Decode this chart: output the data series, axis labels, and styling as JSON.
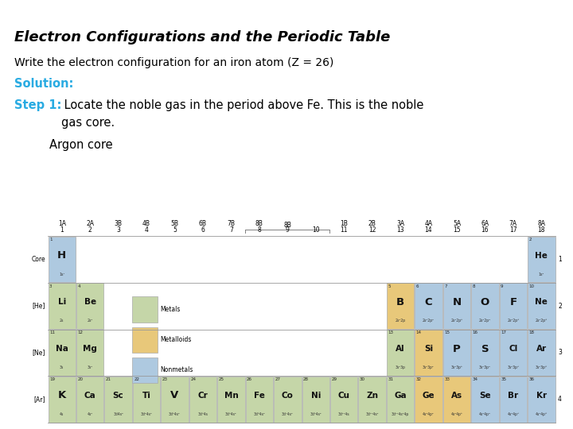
{
  "title": "Electron Configurations and the Periodic Table",
  "subtitle": "Write the electron configuration for an iron atom (Z = 26)",
  "solution_label": "Solution:",
  "step1_label": "Step 1:",
  "step1_text": " Locate the noble gas in the period above Fe. This is the noble",
  "step1_text2": "     gas core.",
  "argon_text": "Argon core",
  "bg_color": "#ffffff",
  "title_color": "#000000",
  "subtitle_color": "#000000",
  "solution_color": "#29abe2",
  "step1_color": "#29abe2",
  "body_color": "#000000",
  "elements": [
    {
      "sym": "H",
      "num": 1,
      "conf": "1s¹",
      "row": 1,
      "col": 1,
      "color": "#aec9e0"
    },
    {
      "sym": "He",
      "num": 2,
      "conf": "1s²",
      "row": 1,
      "col": 18,
      "color": "#aec9e0"
    },
    {
      "sym": "Li",
      "num": 3,
      "conf": "2s",
      "row": 2,
      "col": 1,
      "color": "#c5d6a8"
    },
    {
      "sym": "Be",
      "num": 4,
      "conf": "2s²",
      "row": 2,
      "col": 2,
      "color": "#c5d6a8"
    },
    {
      "sym": "B",
      "num": 5,
      "conf": "2s²2p",
      "row": 2,
      "col": 13,
      "color": "#e8c87a"
    },
    {
      "sym": "C",
      "num": 6,
      "conf": "2s²2p²",
      "row": 2,
      "col": 14,
      "color": "#aec9e0"
    },
    {
      "sym": "N",
      "num": 7,
      "conf": "2s²2p³",
      "row": 2,
      "col": 15,
      "color": "#aec9e0"
    },
    {
      "sym": "O",
      "num": 8,
      "conf": "2s²2p⁴",
      "row": 2,
      "col": 16,
      "color": "#aec9e0"
    },
    {
      "sym": "F",
      "num": 9,
      "conf": "2s²2p⁵",
      "row": 2,
      "col": 17,
      "color": "#aec9e0"
    },
    {
      "sym": "Ne",
      "num": 10,
      "conf": "2s²2p⁶",
      "row": 2,
      "col": 18,
      "color": "#aec9e0"
    },
    {
      "sym": "Na",
      "num": 11,
      "conf": "3s",
      "row": 3,
      "col": 1,
      "color": "#c5d6a8"
    },
    {
      "sym": "Mg",
      "num": 12,
      "conf": "3s²",
      "row": 3,
      "col": 2,
      "color": "#c5d6a8"
    },
    {
      "sym": "Al",
      "num": 13,
      "conf": "3s²3p",
      "row": 3,
      "col": 13,
      "color": "#c5d6a8"
    },
    {
      "sym": "Si",
      "num": 14,
      "conf": "3s²3p²",
      "row": 3,
      "col": 14,
      "color": "#e8c87a"
    },
    {
      "sym": "P",
      "num": 15,
      "conf": "3s²3p³",
      "row": 3,
      "col": 15,
      "color": "#aec9e0"
    },
    {
      "sym": "S",
      "num": 16,
      "conf": "3s²3p⁴",
      "row": 3,
      "col": 16,
      "color": "#aec9e0"
    },
    {
      "sym": "Cl",
      "num": 17,
      "conf": "3s²3p⁵",
      "row": 3,
      "col": 17,
      "color": "#aec9e0"
    },
    {
      "sym": "Ar",
      "num": 18,
      "conf": "3s²3p⁶",
      "row": 3,
      "col": 18,
      "color": "#aec9e0"
    },
    {
      "sym": "K",
      "num": 19,
      "conf": "4s",
      "row": 4,
      "col": 1,
      "color": "#c5d6a8"
    },
    {
      "sym": "Ca",
      "num": 20,
      "conf": "4s²",
      "row": 4,
      "col": 2,
      "color": "#c5d6a8"
    },
    {
      "sym": "Sc",
      "num": 21,
      "conf": "3d4s²",
      "row": 4,
      "col": 3,
      "color": "#c5d6a8"
    },
    {
      "sym": "Ti",
      "num": 22,
      "conf": "3d²4s²",
      "row": 4,
      "col": 4,
      "color": "#c5d6a8"
    },
    {
      "sym": "V",
      "num": 23,
      "conf": "3d³4s²",
      "row": 4,
      "col": 5,
      "color": "#c5d6a8"
    },
    {
      "sym": "Cr",
      "num": 24,
      "conf": "3d⁵4s",
      "row": 4,
      "col": 6,
      "color": "#c5d6a8"
    },
    {
      "sym": "Mn",
      "num": 25,
      "conf": "3d⁵4s²",
      "row": 4,
      "col": 7,
      "color": "#c5d6a8"
    },
    {
      "sym": "Fe",
      "num": 26,
      "conf": "3d⁶4s²",
      "row": 4,
      "col": 8,
      "color": "#c5d6a8"
    },
    {
      "sym": "Co",
      "num": 27,
      "conf": "3d⁷4s²",
      "row": 4,
      "col": 9,
      "color": "#c5d6a8"
    },
    {
      "sym": "Ni",
      "num": 28,
      "conf": "3d⁸4s²",
      "row": 4,
      "col": 10,
      "color": "#c5d6a8"
    },
    {
      "sym": "Cu",
      "num": 29,
      "conf": "3d¹⁰4s",
      "row": 4,
      "col": 11,
      "color": "#c5d6a8"
    },
    {
      "sym": "Zn",
      "num": 30,
      "conf": "3d¹⁰4s²",
      "row": 4,
      "col": 12,
      "color": "#c5d6a8"
    },
    {
      "sym": "Ga",
      "num": 31,
      "conf": "3d¹⁰4s²4p",
      "row": 4,
      "col": 13,
      "color": "#c5d6a8"
    },
    {
      "sym": "Ge",
      "num": 32,
      "conf": "4s²4p²",
      "row": 4,
      "col": 14,
      "color": "#e8c87a"
    },
    {
      "sym": "As",
      "num": 33,
      "conf": "4s²4p³",
      "row": 4,
      "col": 15,
      "color": "#e8c87a"
    },
    {
      "sym": "Se",
      "num": 34,
      "conf": "4s²4p⁴",
      "row": 4,
      "col": 16,
      "color": "#aec9e0"
    },
    {
      "sym": "Br",
      "num": 35,
      "conf": "4s²4p⁵",
      "row": 4,
      "col": 17,
      "color": "#aec9e0"
    },
    {
      "sym": "Kr",
      "num": 36,
      "conf": "4s²4p⁶",
      "row": 4,
      "col": 18,
      "color": "#aec9e0"
    }
  ],
  "group_labels": [
    {
      "label": "1A",
      "num": "1",
      "col": 1
    },
    {
      "label": "2A",
      "num": "2",
      "col": 2
    },
    {
      "label": "3B",
      "num": "3",
      "col": 3
    },
    {
      "label": "4B",
      "num": "4",
      "col": 4
    },
    {
      "label": "5B",
      "num": "5",
      "col": 5
    },
    {
      "label": "6B",
      "num": "6",
      "col": 6
    },
    {
      "label": "7B",
      "num": "7",
      "col": 7
    },
    {
      "label": "8B",
      "num": "8",
      "col": 8
    },
    {
      "label": "",
      "num": "9",
      "col": 9
    },
    {
      "label": "",
      "num": "10",
      "col": 10
    },
    {
      "label": "1B",
      "num": "11",
      "col": 11
    },
    {
      "label": "2B",
      "num": "12",
      "col": 12
    },
    {
      "label": "3A",
      "num": "13",
      "col": 13
    },
    {
      "label": "4A",
      "num": "14",
      "col": 14
    },
    {
      "label": "5A",
      "num": "15",
      "col": 15
    },
    {
      "label": "6A",
      "num": "16",
      "col": 16
    },
    {
      "label": "7A",
      "num": "17",
      "col": 17
    },
    {
      "label": "8A",
      "num": "18",
      "col": 18
    }
  ],
  "row_labels": [
    "Core",
    "[He]",
    "[Ne]",
    "[Ar]"
  ],
  "period_nums": [
    "1",
    "2",
    "3",
    "4"
  ],
  "legend_items": [
    {
      "label": "Metals",
      "color": "#c5d6a8"
    },
    {
      "label": "Metalloids",
      "color": "#e8c87a"
    },
    {
      "label": "Nonmetals",
      "color": "#aec9e0"
    }
  ],
  "line_color": "#999999",
  "cell_edge_color": "#aaaaaa"
}
